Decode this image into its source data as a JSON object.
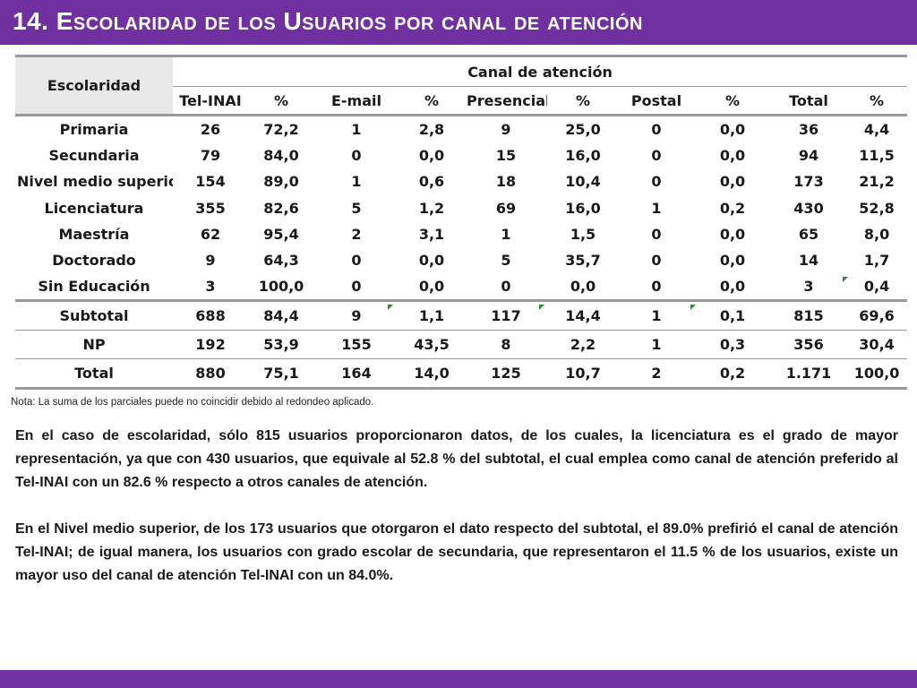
{
  "slide": {
    "title": "14. Escolaridad de los Usuarios por canal de atención",
    "accent_color": "#7030a0"
  },
  "table": {
    "header_row_label": "Escolaridad",
    "group_header": "Canal de atención",
    "columns": [
      "Tel-INAI",
      "%",
      "E-mail",
      "%",
      "Presencial",
      "%",
      "Postal",
      "%",
      "Total",
      "%"
    ],
    "rows": [
      {
        "label": "Primaria",
        "values": [
          "26",
          "72,2",
          "1",
          "2,8",
          "9",
          "25,0",
          "0",
          "0,0",
          "36",
          "4,4"
        ]
      },
      {
        "label": "Secundaria",
        "values": [
          "79",
          "84,0",
          "0",
          "0,0",
          "15",
          "16,0",
          "0",
          "0,0",
          "94",
          "11,5"
        ]
      },
      {
        "label": "Nivel medio superior",
        "values": [
          "154",
          "89,0",
          "1",
          "0,6",
          "18",
          "10,4",
          "0",
          "0,0",
          "173",
          "21,2"
        ]
      },
      {
        "label": "Licenciatura",
        "values": [
          "355",
          "82,6",
          "5",
          "1,2",
          "69",
          "16,0",
          "1",
          "0,2",
          "430",
          "52,8"
        ]
      },
      {
        "label": "Maestría",
        "values": [
          "62",
          "95,4",
          "2",
          "3,1",
          "1",
          "1,5",
          "0",
          "0,0",
          "65",
          "8,0"
        ]
      },
      {
        "label": "Doctorado",
        "values": [
          "9",
          "64,3",
          "0",
          "0,0",
          "5",
          "35,7",
          "0",
          "0,0",
          "14",
          "1,7"
        ]
      },
      {
        "label": "Sin Educación",
        "values": [
          "3",
          "100,0",
          "0",
          "0,0",
          "0",
          "0,0",
          "0",
          "0,0",
          "3",
          "0,4"
        ]
      }
    ],
    "summary_rows": [
      {
        "label": "Subtotal",
        "values": [
          "688",
          "84,4",
          "9",
          "1,1",
          "117",
          "14,4",
          "1",
          "0,1",
          "815",
          "69,6"
        ]
      },
      {
        "label": "NP",
        "values": [
          "192",
          "53,9",
          "155",
          "43,5",
          "8",
          "2,2",
          "1",
          "0,3",
          "356",
          "30,4"
        ]
      },
      {
        "label": "Total",
        "values": [
          "880",
          "75,1",
          "164",
          "14,0",
          "125",
          "10,7",
          "2",
          "0,2",
          "1.171",
          "100,0"
        ]
      }
    ]
  },
  "note": "Nota: La suma de los parciales puede no coincidir debido al redondeo aplicado.",
  "paragraphs": [
    "En el caso de escolaridad, sólo 815 usuarios proporcionaron datos, de los cuales, la licenciatura es el grado de mayor representación, ya que con 430 usuarios, que equivale al 52.8 % del subtotal, el cual emplea como canal de atención preferido al Tel-INAI con un 82.6 % respecto a otros canales de atención.",
    "En el Nivel medio superior, de los 173 usuarios que otorgaron el dato respecto del subtotal, el 89.0% prefirió el canal de atención Tel-INAI; de igual manera, los usuarios con grado escolar de secundaria, que representaron el 11.5 % de los usuarios, existe un mayor uso del canal de atención Tel-INAI con un 84.0%."
  ]
}
